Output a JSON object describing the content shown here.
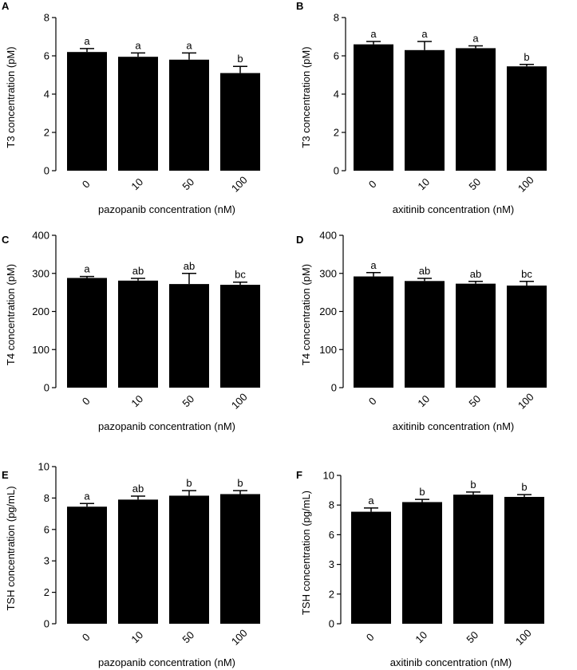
{
  "chart_data": [
    {
      "panel": "A",
      "type": "bar",
      "categories": [
        "0",
        "10",
        "50",
        "100"
      ],
      "values": [
        6.2,
        5.95,
        5.8,
        5.1
      ],
      "errors": [
        0.18,
        0.2,
        0.35,
        0.35
      ],
      "significance": [
        "a",
        "a",
        "a",
        "b"
      ],
      "ylabel": "T3 concentration  (pM)",
      "xlabel": "pazopanib concentration (nM)",
      "ylim": [
        0,
        8
      ],
      "yticks": [
        "0",
        "2",
        "4",
        "6",
        "8"
      ]
    },
    {
      "panel": "B",
      "type": "bar",
      "categories": [
        "0",
        "10",
        "50",
        "100"
      ],
      "values": [
        6.6,
        6.3,
        6.4,
        5.45
      ],
      "errors": [
        0.15,
        0.45,
        0.12,
        0.1
      ],
      "significance": [
        "a",
        "a",
        "a",
        "b"
      ],
      "ylabel": "T3 concentration  (pM)",
      "xlabel": "axitinib concentration (nM)",
      "ylim": [
        0,
        8
      ],
      "yticks": [
        "0",
        "2",
        "4",
        "6",
        "8"
      ]
    },
    {
      "panel": "C",
      "type": "bar",
      "categories": [
        "0",
        "10",
        "50",
        "100"
      ],
      "values": [
        288,
        281,
        272,
        270
      ],
      "errors": [
        4,
        6,
        28,
        7
      ],
      "significance": [
        "a",
        "ab",
        "ab",
        "bc"
      ],
      "ylabel": "T4 concentration  (pM)",
      "xlabel": "pazopanib concentration (nM)",
      "ylim": [
        0,
        400
      ],
      "yticks": [
        "0",
        "100",
        "200",
        "300",
        "400"
      ]
    },
    {
      "panel": "D",
      "type": "bar",
      "categories": [
        "0",
        "10",
        "50",
        "100"
      ],
      "values": [
        292,
        280,
        273,
        268
      ],
      "errors": [
        10,
        7,
        6,
        11
      ],
      "significance": [
        "a",
        "ab",
        "ab",
        "bc"
      ],
      "ylabel": "T4 concentration  (pM)",
      "xlabel": "axitinib concentration (nM)",
      "ylim": [
        0,
        400
      ],
      "yticks": [
        "0",
        "100",
        "200",
        "300",
        "400"
      ]
    },
    {
      "panel": "E",
      "type": "bar",
      "categories": [
        "0",
        "10",
        "50",
        "100"
      ],
      "values": [
        7.45,
        7.9,
        8.15,
        8.25
      ],
      "errors": [
        0.2,
        0.22,
        0.32,
        0.22
      ],
      "significance": [
        "a",
        "ab",
        "b",
        "b"
      ],
      "ylabel": "TSH concentration  (pg/mL)",
      "xlabel": "pazopanib concentration (nM)",
      "ylim": [
        0,
        10
      ],
      "yticks": [
        "0",
        "2",
        "3",
        "6",
        "8",
        "10"
      ]
    },
    {
      "panel": "F",
      "type": "bar",
      "categories": [
        "0",
        "10",
        "50",
        "100"
      ],
      "values": [
        7.55,
        8.2,
        8.7,
        8.55
      ],
      "errors": [
        0.25,
        0.18,
        0.18,
        0.15
      ],
      "significance": [
        "a",
        "b",
        "b",
        "b"
      ],
      "ylabel": "TSH concentration  (pg/mL)",
      "xlabel": "axitinib concentration (nM)",
      "ylim": [
        0,
        10
      ],
      "yticks": [
        "0",
        "2",
        "3",
        "6",
        "8",
        "10"
      ]
    }
  ]
}
